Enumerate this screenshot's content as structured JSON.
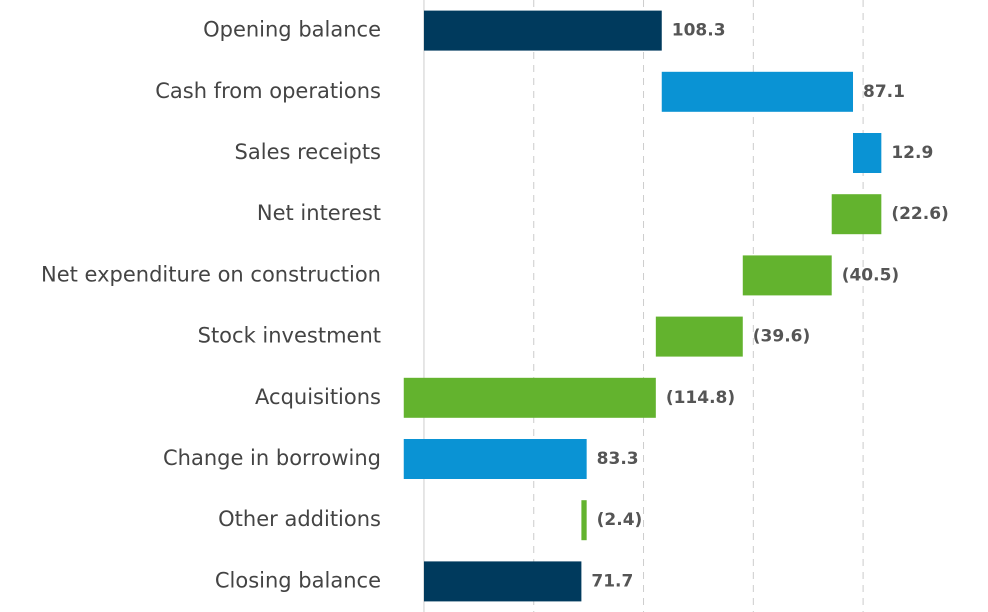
{
  "chart_data": {
    "type": "waterfall",
    "categories": [
      "Opening balance",
      "Cash from operations",
      "Sales receipts",
      "Net interest",
      "Net expenditure on construction",
      "Stock investment",
      "Acquisitions",
      "Change in borrowing",
      "Other additions",
      "Closing balance"
    ],
    "values": [
      108.3,
      87.1,
      12.9,
      -22.6,
      -40.5,
      -39.6,
      -114.8,
      83.3,
      -2.4,
      71.7
    ],
    "value_labels": [
      "108.3",
      "87.1",
      "12.9",
      "(22.6)",
      "(40.5)",
      "(39.6)",
      "(114.8)",
      "83.3",
      "(2.4)",
      "71.7"
    ],
    "is_total": [
      true,
      false,
      false,
      false,
      false,
      false,
      false,
      false,
      false,
      true
    ],
    "total_color": "#003a5d",
    "increase_color": "#0a93d4",
    "decrease_color": "#63b32e",
    "xlim": [
      -10,
      225
    ],
    "xticks": [
      0,
      50,
      100,
      150,
      200
    ],
    "grid": true
  }
}
